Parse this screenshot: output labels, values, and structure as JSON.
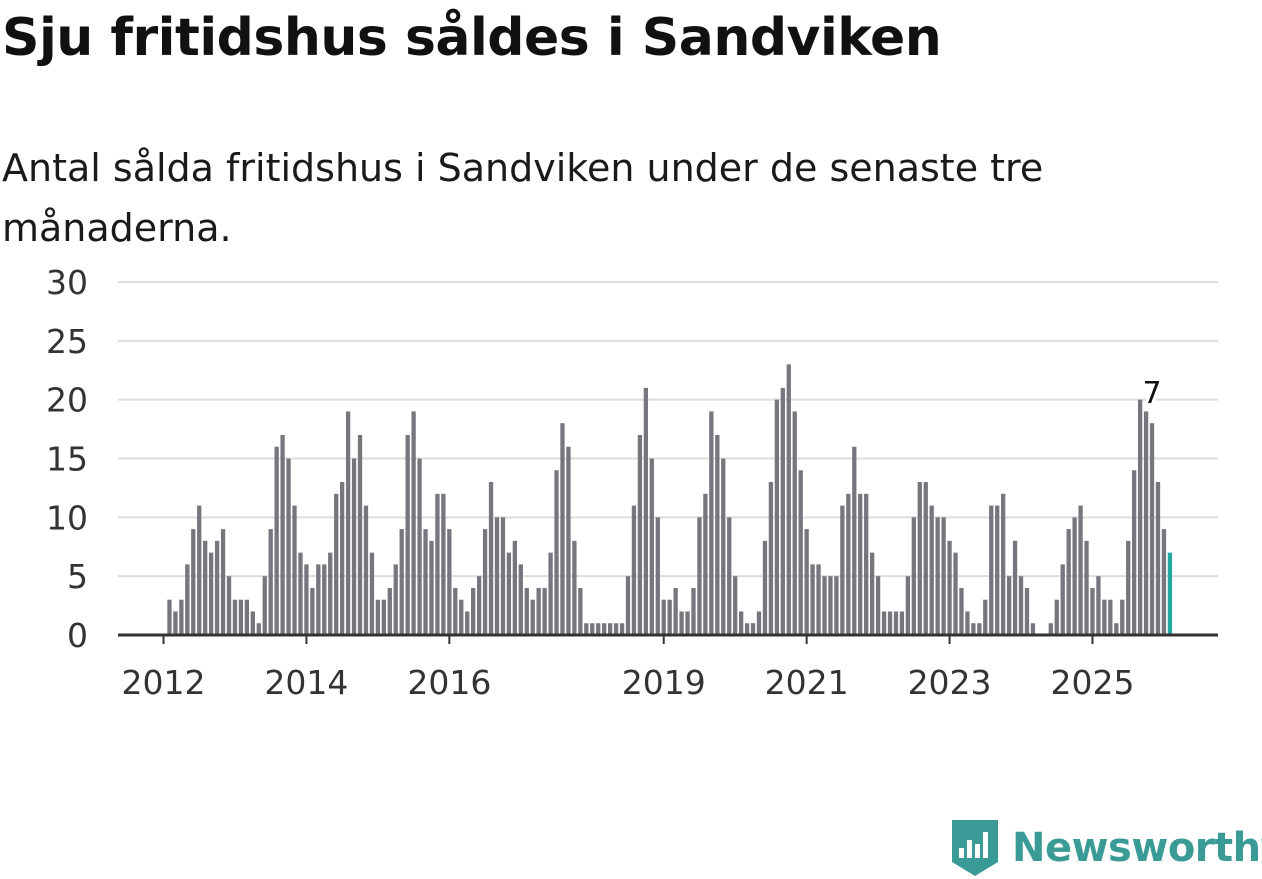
{
  "title": "Sju fritidshus såldes i Sandviken",
  "subtitle": "Antal sålda fritidshus i Sandviken under de senaste tre månaderna.",
  "brand": {
    "name": "Newsworthy",
    "color": "#3a9b96"
  },
  "colors": {
    "bar": "#77767d",
    "highlight": "#22a8a1",
    "grid": "#dddddd",
    "axis": "#333333"
  },
  "chart_data": {
    "type": "bar",
    "title": "Sju fritidshus såldes i Sandviken",
    "xlabel": "",
    "ylabel": "",
    "ylim": [
      0,
      30
    ],
    "yticks": [
      0,
      5,
      10,
      15,
      20,
      25,
      30
    ],
    "xticks": [
      {
        "label": "2012",
        "index": 0
      },
      {
        "label": "2014",
        "index": 24
      },
      {
        "label": "2016",
        "index": 48
      },
      {
        "label": "2019",
        "index": 84
      },
      {
        "label": "2021",
        "index": 108
      },
      {
        "label": "2023",
        "index": 132
      },
      {
        "label": "2025",
        "index": 156
      }
    ],
    "start": "2012-01",
    "values": [
      0,
      3,
      2,
      3,
      6,
      9,
      11,
      8,
      7,
      8,
      9,
      5,
      3,
      3,
      3,
      2,
      1,
      5,
      9,
      16,
      17,
      15,
      11,
      7,
      6,
      4,
      6,
      6,
      7,
      12,
      13,
      19,
      15,
      17,
      11,
      7,
      3,
      3,
      4,
      6,
      9,
      17,
      19,
      15,
      9,
      8,
      12,
      12,
      9,
      4,
      3,
      2,
      4,
      5,
      9,
      13,
      10,
      10,
      7,
      8,
      6,
      4,
      3,
      4,
      4,
      7,
      14,
      18,
      16,
      8,
      4,
      1,
      1,
      1,
      1,
      1,
      1,
      1,
      5,
      11,
      17,
      21,
      15,
      10,
      3,
      3,
      4,
      2,
      2,
      4,
      10,
      12,
      19,
      17,
      15,
      10,
      5,
      2,
      1,
      1,
      2,
      8,
      13,
      20,
      21,
      23,
      19,
      14,
      9,
      6,
      6,
      5,
      5,
      5,
      11,
      12,
      16,
      12,
      12,
      7,
      5,
      2,
      2,
      2,
      2,
      5,
      10,
      13,
      13,
      11,
      10,
      10,
      8,
      7,
      4,
      2,
      1,
      1,
      3,
      11,
      11,
      12,
      5,
      8,
      5,
      4,
      1,
      0,
      0,
      1,
      3,
      6,
      9,
      10,
      11,
      8,
      4,
      5,
      3,
      3,
      1,
      3,
      8,
      14,
      20,
      19,
      18,
      13,
      9,
      7
    ],
    "annotation": {
      "label": "7",
      "index": 166
    }
  }
}
